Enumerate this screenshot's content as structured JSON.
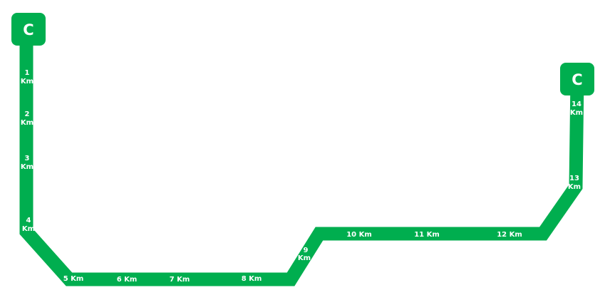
{
  "colors": {
    "route": "#00AE4F",
    "text": "#FFFFFF",
    "background": "#FFFFFF"
  },
  "endpoints": [
    {
      "id": "start",
      "label": "C"
    },
    {
      "id": "end",
      "label": "C"
    }
  ],
  "markers": [
    {
      "num": "1",
      "unit": "Km"
    },
    {
      "num": "2",
      "unit": "Km"
    },
    {
      "num": "3",
      "unit": "Km"
    },
    {
      "num": "4",
      "unit": "Km"
    },
    {
      "num": "5",
      "unit": "Km"
    },
    {
      "num": "6",
      "unit": "Km"
    },
    {
      "num": "7",
      "unit": "Km"
    },
    {
      "num": "8",
      "unit": "Km"
    },
    {
      "num": "9",
      "unit": "Km"
    },
    {
      "num": "10",
      "unit": "Km"
    },
    {
      "num": "11",
      "unit": "Km"
    },
    {
      "num": "12",
      "unit": "Km"
    },
    {
      "num": "13",
      "unit": "Km"
    },
    {
      "num": "14",
      "unit": "Km"
    }
  ]
}
